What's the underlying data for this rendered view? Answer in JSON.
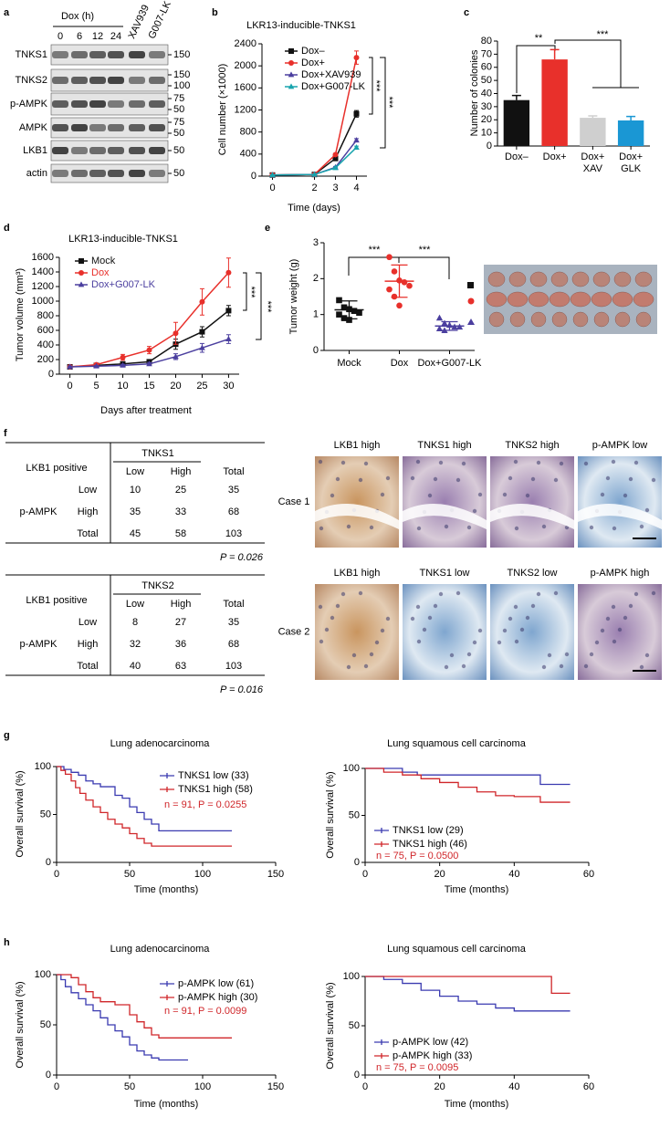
{
  "panel_labels": [
    "a",
    "b",
    "c",
    "d",
    "e",
    "f",
    "g",
    "h"
  ],
  "blot": {
    "header": "Dox (h)",
    "lanes": [
      "0",
      "6",
      "12",
      "24",
      "XAV939",
      "G007-LK"
    ],
    "rows": [
      {
        "name": "TNKS1",
        "markers": [
          150
        ]
      },
      {
        "name": "TNKS2",
        "markers": [
          150,
          100
        ]
      },
      {
        "name": "p-AMPK",
        "markers": [
          75,
          50
        ]
      },
      {
        "name": "AMPK",
        "markers": [
          75,
          50
        ]
      },
      {
        "name": "LKB1",
        "markers": [
          50
        ]
      },
      {
        "name": "actin",
        "markers": [
          50
        ]
      }
    ]
  },
  "chart_data": [
    {
      "type": "line",
      "title": "LKR13-inducible-TNKS1",
      "x": [
        0,
        2,
        3,
        4
      ],
      "xlim": [
        -0.5,
        4.5
      ],
      "xticks": [
        0,
        2,
        3,
        4
      ],
      "xlabel": "Time (days)",
      "ylabel": "Cell number (×1000)",
      "ylim": [
        0,
        2400
      ],
      "yticks": [
        0,
        400,
        800,
        1200,
        1600,
        2000,
        2400
      ],
      "legend": "upper left",
      "series": [
        {
          "name": "Dox–",
          "color": "#111111",
          "marker": "square",
          "values": [
            20,
            30,
            320,
            1130
          ],
          "errors": [
            5,
            5,
            20,
            60
          ]
        },
        {
          "name": "Dox+",
          "color": "#e8302b",
          "marker": "circle",
          "values": [
            20,
            30,
            390,
            2150
          ],
          "errors": [
            5,
            5,
            20,
            120
          ]
        },
        {
          "name": "Dox+XAV939",
          "color": "#4b3f9f",
          "marker": "triangle",
          "values": [
            20,
            30,
            160,
            650
          ],
          "errors": [
            5,
            5,
            15,
            30
          ]
        },
        {
          "name": "Dox+G007-LK",
          "color": "#18a4ad",
          "marker": "triangle",
          "values": [
            20,
            30,
            150,
            520
          ],
          "errors": [
            5,
            5,
            15,
            25
          ]
        }
      ],
      "annotations": [
        "***",
        "***"
      ]
    },
    {
      "type": "bar",
      "categories": [
        "Dox–",
        "Dox+",
        "Dox+\nXAV",
        "Dox+\nGLK"
      ],
      "values": [
        35,
        66,
        21.5,
        19.5
      ],
      "errors": [
        3.5,
        7.5,
        1.5,
        3
      ],
      "colors": [
        "#111111",
        "#e8302b",
        "#cfcfcf",
        "#1a97d4"
      ],
      "ylabel": "Number of colonies",
      "ylim": [
        0,
        80
      ],
      "yticks": [
        0,
        10,
        20,
        30,
        40,
        50,
        60,
        70,
        80
      ],
      "annotations": [
        "**",
        "***"
      ]
    },
    {
      "type": "line",
      "title": "LKR13-inducible-TNKS1",
      "x": [
        0,
        5,
        10,
        15,
        20,
        25,
        30
      ],
      "xlim": [
        -2,
        32
      ],
      "xticks": [
        0,
        5,
        10,
        15,
        20,
        25,
        30
      ],
      "xlabel": "Days after treatment",
      "ylabel": "Tumor volume (mm³)",
      "ylim": [
        0,
        1600
      ],
      "yticks": [
        0,
        200,
        400,
        600,
        800,
        1000,
        1200,
        1400,
        1600
      ],
      "legend": "upper left",
      "legend_colored": true,
      "series": [
        {
          "name": "Mock",
          "color": "#111111",
          "marker": "square",
          "values": [
            100,
            120,
            140,
            170,
            410,
            580,
            870
          ],
          "errors": [
            10,
            15,
            20,
            30,
            70,
            70,
            70
          ]
        },
        {
          "name": "Dox",
          "color": "#e8302b",
          "marker": "circle",
          "values": [
            100,
            130,
            230,
            330,
            560,
            990,
            1390
          ],
          "errors": [
            10,
            20,
            40,
            50,
            150,
            180,
            200
          ]
        },
        {
          "name": "Dox+G007-LK",
          "color": "#4b3f9f",
          "marker": "triangle",
          "values": [
            100,
            110,
            120,
            140,
            240,
            360,
            480
          ],
          "errors": [
            10,
            10,
            15,
            20,
            40,
            60,
            60
          ]
        }
      ],
      "annotations": [
        "***",
        "***"
      ]
    },
    {
      "type": "strip",
      "categories": [
        "Mock",
        "Dox",
        "Dox+G007-LK"
      ],
      "ylabel": "Tumor weight (g)",
      "ylim": [
        0,
        3
      ],
      "yticks": [
        0,
        1,
        2,
        3
      ],
      "groups": [
        {
          "color": "#111111",
          "marker": "square",
          "values": [
            1.4,
            1.2,
            1.15,
            1.1,
            1.05,
            1.0,
            0.9,
            0.85
          ],
          "mean": 1.13,
          "sd": 0.25
        },
        {
          "color": "#e8302b",
          "marker": "circle",
          "values": [
            2.6,
            2.2,
            1.95,
            1.9,
            1.8,
            1.7,
            1.5,
            1.25
          ],
          "mean": 1.93,
          "sd": 0.45
        },
        {
          "color": "#4b3f9f",
          "marker": "triangle",
          "values": [
            0.9,
            0.75,
            0.7,
            0.65,
            0.65,
            0.6,
            0.55
          ],
          "mean": 0.68,
          "sd": 0.12
        }
      ],
      "annotations": [
        "***",
        "***"
      ]
    },
    {
      "type": "km",
      "title": "Lung adenocarcinoma",
      "xlabel": "Time (months)",
      "ylabel": "Overall survival (%)",
      "xlim": [
        0,
        150
      ],
      "xticks": [
        0,
        50,
        100,
        150
      ],
      "ylim": [
        0,
        100
      ],
      "yticks": [
        0,
        50,
        100
      ],
      "legend": "upper right",
      "annotation": "n = 91, P = 0.0255",
      "annotation_color": "#d0262a",
      "series": [
        {
          "name": "TNKS1 low (33)",
          "color": "#3a3ab0",
          "x": [
            0,
            5,
            10,
            15,
            20,
            25,
            30,
            40,
            45,
            50,
            55,
            60,
            65,
            70,
            120
          ],
          "values": [
            100,
            97,
            94,
            91,
            85,
            82,
            79,
            70,
            67,
            58,
            52,
            45,
            40,
            33,
            33
          ]
        },
        {
          "name": "TNKS1 high (58)",
          "color": "#d0262a",
          "x": [
            0,
            3,
            6,
            10,
            13,
            16,
            20,
            25,
            30,
            35,
            40,
            45,
            50,
            55,
            60,
            65,
            120
          ],
          "values": [
            100,
            96,
            92,
            85,
            78,
            72,
            65,
            58,
            52,
            45,
            40,
            36,
            30,
            25,
            20,
            17,
            17
          ]
        }
      ]
    },
    {
      "type": "km",
      "title": "Lung squamous cell carcinoma",
      "xlabel": "Time (months)",
      "ylabel": "Overall survival (%)",
      "xlim": [
        0,
        60
      ],
      "xticks": [
        0,
        20,
        40,
        60
      ],
      "ylim": [
        0,
        100
      ],
      "yticks": [
        0,
        50,
        100
      ],
      "legend": "lower left",
      "annotation": "n = 75, P = 0.0500",
      "annotation_color": "#d0262a",
      "series": [
        {
          "name": "TNKS1 low (29)",
          "color": "#3a3ab0",
          "x": [
            0,
            10,
            14,
            47,
            55
          ],
          "values": [
            100,
            96,
            93,
            83,
            83
          ]
        },
        {
          "name": "TNKS1 high (46)",
          "color": "#d0262a",
          "x": [
            0,
            5,
            10,
            15,
            20,
            25,
            30,
            35,
            40,
            47,
            55
          ],
          "values": [
            100,
            96,
            93,
            89,
            85,
            80,
            75,
            71,
            70,
            64,
            64
          ]
        }
      ]
    },
    {
      "type": "km",
      "title": "Lung adenocarcinoma",
      "xlabel": "Time (months)",
      "ylabel": "Overall survival (%)",
      "xlim": [
        0,
        150
      ],
      "xticks": [
        0,
        50,
        100,
        150
      ],
      "ylim": [
        0,
        100
      ],
      "yticks": [
        0,
        50,
        100
      ],
      "legend": "upper right",
      "annotation": "n = 91, P = 0.0099",
      "annotation_color": "#d0262a",
      "series": [
        {
          "name": "p-AMPK low (61)",
          "color": "#3a3ab0",
          "x": [
            0,
            3,
            6,
            10,
            15,
            20,
            25,
            30,
            35,
            40,
            45,
            50,
            55,
            60,
            65,
            70,
            90
          ],
          "values": [
            100,
            95,
            88,
            82,
            76,
            70,
            64,
            57,
            50,
            44,
            38,
            30,
            24,
            20,
            17,
            15,
            15
          ]
        },
        {
          "name": "p-AMPK high (30)",
          "color": "#d0262a",
          "x": [
            0,
            10,
            15,
            20,
            25,
            30,
            40,
            50,
            55,
            60,
            65,
            70,
            120
          ],
          "values": [
            100,
            97,
            90,
            83,
            77,
            73,
            70,
            60,
            53,
            47,
            40,
            37,
            37
          ]
        }
      ]
    },
    {
      "type": "km",
      "title": "Lung squamous cell carcinoma",
      "xlabel": "Time (months)",
      "ylabel": "Overall survival (%)",
      "xlim": [
        0,
        60
      ],
      "xticks": [
        0,
        20,
        40,
        60
      ],
      "ylim": [
        0,
        100
      ],
      "yticks": [
        0,
        50,
        100
      ],
      "legend": "lower left",
      "annotation": "n = 75, P = 0.0095",
      "annotation_color": "#d0262a",
      "series": [
        {
          "name": "p-AMPK low (42)",
          "color": "#3a3ab0",
          "x": [
            0,
            5,
            10,
            15,
            20,
            25,
            30,
            35,
            40,
            55
          ],
          "values": [
            100,
            97,
            93,
            86,
            80,
            75,
            72,
            68,
            65,
            65
          ]
        },
        {
          "name": "p-AMPK high (33)",
          "color": "#d0262a",
          "x": [
            0,
            47,
            50,
            55
          ],
          "values": [
            100,
            100,
            83,
            83
          ]
        }
      ]
    }
  ],
  "tables": [
    {
      "corner": "LKB1 positive",
      "group": "TNKS1",
      "columns": [
        "Low",
        "High",
        "Total"
      ],
      "row_group": "p-AMPK",
      "rows": [
        {
          "label": "Low",
          "values": [
            10,
            25,
            35
          ]
        },
        {
          "label": "High",
          "values": [
            35,
            33,
            68
          ]
        },
        {
          "label": "Total",
          "values": [
            45,
            58,
            103
          ]
        }
      ],
      "p": "P = 0.026"
    },
    {
      "corner": "LKB1 positive",
      "group": "TNKS2",
      "columns": [
        "Low",
        "High",
        "Total"
      ],
      "row_group": "p-AMPK",
      "rows": [
        {
          "label": "Low",
          "values": [
            8,
            27,
            35
          ]
        },
        {
          "label": "High",
          "values": [
            32,
            36,
            68
          ]
        },
        {
          "label": "Total",
          "values": [
            40,
            63,
            103
          ]
        }
      ],
      "p": "P = 0.016"
    }
  ],
  "ihc": {
    "cases": [
      {
        "label": "Case 1",
        "images": [
          "LKB1 high",
          "TNKS1 high",
          "TNKS2 high",
          "p-AMPK low"
        ]
      },
      {
        "label": "Case 2",
        "images": [
          "LKB1 high",
          "TNKS1 low",
          "TNKS2 low",
          "p-AMPK high"
        ]
      }
    ]
  }
}
